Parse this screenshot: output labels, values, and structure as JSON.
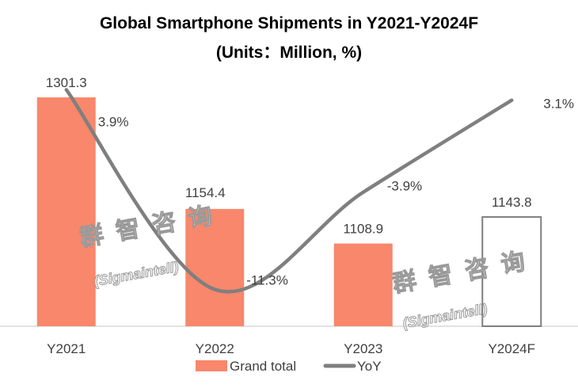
{
  "chart_data": {
    "type": "bar+line",
    "title": "Global Smartphone Shipments in Y2021-Y2024F",
    "subtitle": "(Units：Million, %)",
    "categories": [
      "Y2021",
      "Y2022",
      "Y2023",
      "Y2024F"
    ],
    "series": [
      {
        "name": "Grand total",
        "type": "bar",
        "values": [
          1301.3,
          1154.4,
          1108.9,
          1143.8
        ],
        "labels": [
          "1301.3",
          "1154.4",
          "1108.9",
          "1143.8"
        ],
        "color": "#F8876B",
        "forecast_style": "outlined"
      },
      {
        "name": "YoY",
        "type": "line",
        "axis": "secondary",
        "values": [
          3.9,
          -11.3,
          -3.9,
          3.1
        ],
        "labels": [
          "3.9%",
          "-11.3%",
          "-3.9%",
          "3.1%"
        ],
        "color": "#7F7F7F",
        "smooth": true
      }
    ],
    "ylim": [
      1000,
      1320
    ],
    "y2lim": [
      -14.1,
      4.4
    ],
    "grid": false,
    "legend": "bottom"
  },
  "watermark": {
    "cn": "群 智 咨 询",
    "en": "(Sigmaintell)"
  }
}
